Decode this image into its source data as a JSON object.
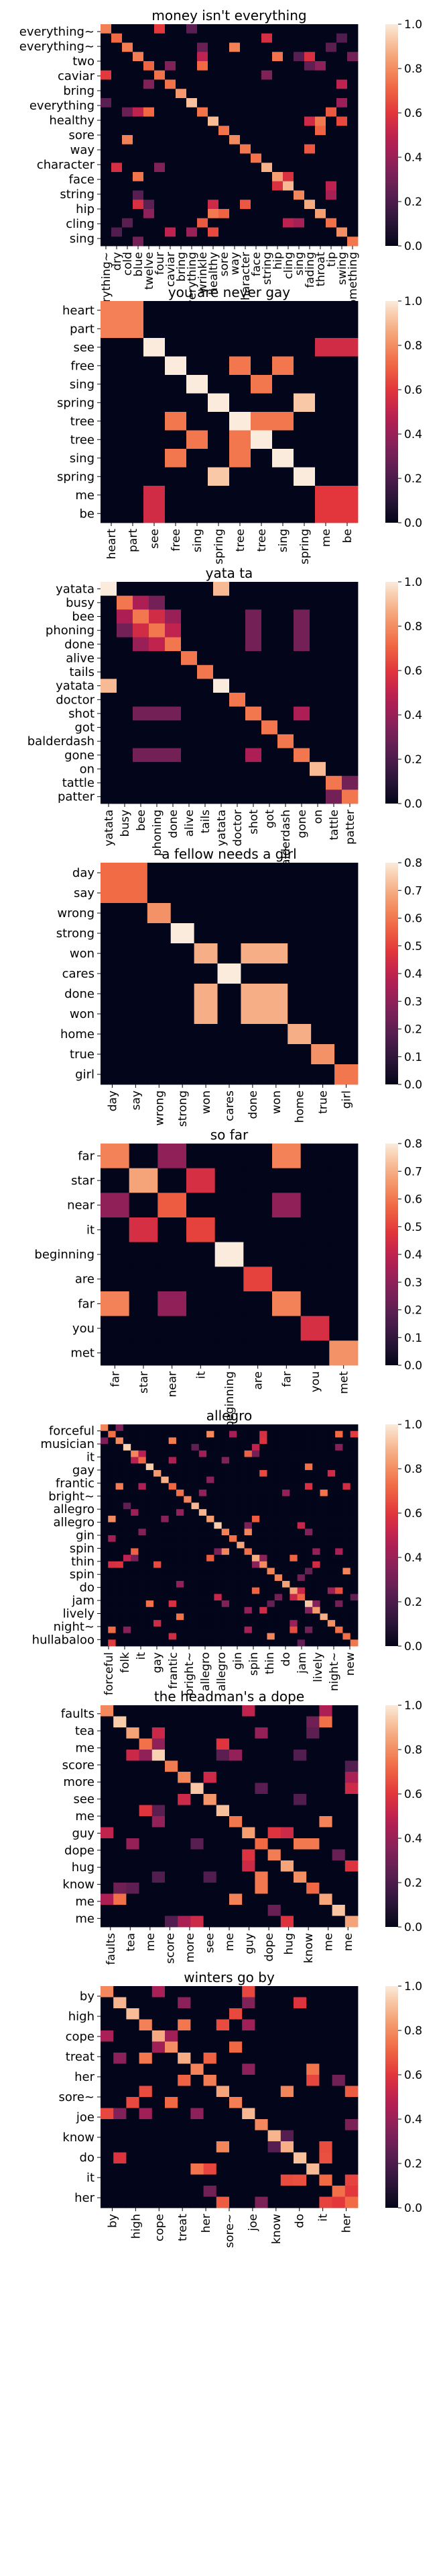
{
  "chart_data": [
    {
      "type": "heatmap",
      "title": "money isn't everything",
      "labels": [
        "everything~",
        "everything~",
        "two",
        "caviar",
        "bring",
        "everything",
        "healthy",
        "sore",
        "way",
        "character",
        "face",
        "string",
        "hip",
        "cling",
        "sing"
      ],
      "xlabels": [
        "everything~",
        "dry",
        "cold",
        "blue",
        "twelve",
        "four",
        "caviar",
        "bring",
        "everything",
        "wrinkle",
        "healthy",
        "sore",
        "way",
        "character",
        "face",
        "string",
        "hip",
        "cling",
        "sing",
        "fading",
        "throat",
        "tip",
        "swing",
        "something"
      ],
      "ylabels": [
        "everything~",
        "everything~",
        "two",
        "caviar",
        "bring",
        "everything",
        "healthy",
        "sore",
        "way",
        "character",
        "face",
        "string",
        "hip",
        "cling",
        "sing"
      ],
      "n": 24,
      "shown_ylabels_every": 1,
      "vmax": 1.0,
      "colorbar_ticks": [
        0.0,
        0.2,
        0.4,
        0.6,
        0.8,
        1.0
      ]
    },
    {
      "type": "heatmap",
      "title": "you are never gay",
      "xlabels": [
        "heart",
        "part",
        "see",
        "free",
        "sing",
        "spring",
        "tree",
        "tree",
        "sing",
        "spring",
        "me",
        "be"
      ],
      "ylabels": [
        "heart",
        "part",
        "see",
        "free",
        "sing",
        "spring",
        "tree",
        "tree",
        "sing",
        "spring",
        "me",
        "be"
      ],
      "vmax": 1.0,
      "colorbar_ticks": [
        0.0,
        0.2,
        0.4,
        0.6,
        0.8,
        1.0
      ],
      "cells": [
        [
          0.77,
          0.77,
          0,
          0,
          0,
          0,
          0,
          0,
          0,
          0,
          0,
          0
        ],
        [
          0.77,
          0.77,
          0,
          0,
          0,
          0,
          0,
          0,
          0,
          0,
          0,
          0
        ],
        [
          0,
          0,
          1.0,
          0,
          0,
          0,
          0,
          0,
          0,
          0,
          0.55,
          0.55
        ],
        [
          0,
          0,
          0,
          1.0,
          0,
          0,
          0.75,
          0,
          0.75,
          0,
          0,
          0
        ],
        [
          0,
          0,
          0,
          0,
          1.0,
          0,
          0,
          0.75,
          0,
          0,
          0,
          0
        ],
        [
          0,
          0,
          0,
          0,
          0,
          1.0,
          0,
          0,
          0,
          0.93,
          0,
          0
        ],
        [
          0,
          0,
          0,
          0.75,
          0,
          0,
          1.0,
          0.75,
          0.75,
          0,
          0,
          0
        ],
        [
          0,
          0,
          0,
          0,
          0.75,
          0,
          0.75,
          1.0,
          0,
          0,
          0,
          0
        ],
        [
          0,
          0,
          0,
          0.75,
          0,
          0,
          0.75,
          0,
          1.0,
          0,
          0,
          0
        ],
        [
          0,
          0,
          0,
          0,
          0,
          0.93,
          0,
          0,
          0,
          1.0,
          0,
          0
        ],
        [
          0,
          0,
          0.55,
          0,
          0,
          0,
          0,
          0,
          0,
          0,
          0.6,
          0.6
        ],
        [
          0,
          0,
          0.55,
          0,
          0,
          0,
          0,
          0,
          0,
          0,
          0.6,
          0.6
        ]
      ]
    },
    {
      "type": "heatmap",
      "title": "yata ta",
      "xlabels": [
        "yatata",
        "busy",
        "bee",
        "phoning",
        "done",
        "alive",
        "tails",
        "yatata",
        "doctor",
        "shot",
        "got",
        "balderdash",
        "gone",
        "on",
        "tattle",
        "patter"
      ],
      "ylabels": [
        "yatata",
        "busy",
        "bee",
        "phoning",
        "done",
        "alive",
        "tails",
        "yatata",
        "doctor",
        "shot",
        "got",
        "balderdash",
        "gone",
        "on",
        "tattle",
        "patter"
      ],
      "vmax": 1.0,
      "colorbar_ticks": [
        0.0,
        0.2,
        0.4,
        0.6,
        0.8,
        1.0
      ],
      "cells": [
        [
          1.0,
          0,
          0,
          0,
          0,
          0,
          0,
          0.9,
          0,
          0,
          0,
          0,
          0,
          0,
          0,
          0
        ],
        [
          0,
          0.75,
          0.45,
          0.3,
          0,
          0,
          0,
          0,
          0,
          0,
          0,
          0,
          0,
          0,
          0,
          0
        ],
        [
          0,
          0.45,
          0.75,
          0.55,
          0.4,
          0,
          0,
          0,
          0,
          0.3,
          0,
          0,
          0.3,
          0,
          0,
          0
        ],
        [
          0,
          0.3,
          0.55,
          0.75,
          0.5,
          0,
          0,
          0,
          0,
          0.3,
          0,
          0,
          0.3,
          0,
          0,
          0
        ],
        [
          0,
          0,
          0.4,
          0.5,
          0.75,
          0,
          0,
          0,
          0,
          0.3,
          0,
          0,
          0.3,
          0,
          0,
          0
        ],
        [
          0,
          0,
          0,
          0,
          0,
          0.75,
          0,
          0,
          0,
          0,
          0,
          0,
          0,
          0,
          0,
          0
        ],
        [
          0,
          0,
          0,
          0,
          0,
          0,
          0.75,
          0,
          0,
          0,
          0,
          0,
          0,
          0,
          0,
          0
        ],
        [
          0.9,
          0,
          0,
          0,
          0,
          0,
          0,
          1.0,
          0,
          0,
          0,
          0,
          0,
          0,
          0,
          0
        ],
        [
          0,
          0,
          0,
          0,
          0,
          0,
          0,
          0,
          0.75,
          0,
          0,
          0,
          0,
          0,
          0,
          0
        ],
        [
          0,
          0,
          0.3,
          0.3,
          0.3,
          0,
          0,
          0,
          0,
          0.75,
          0,
          0,
          0.45,
          0,
          0,
          0
        ],
        [
          0,
          0,
          0,
          0,
          0,
          0,
          0,
          0,
          0,
          0,
          0.75,
          0,
          0,
          0,
          0,
          0
        ],
        [
          0,
          0,
          0,
          0,
          0,
          0,
          0,
          0,
          0,
          0,
          0,
          0.75,
          0,
          0,
          0,
          0
        ],
        [
          0,
          0,
          0.3,
          0.3,
          0.3,
          0,
          0,
          0,
          0,
          0.45,
          0,
          0,
          0.75,
          0,
          0,
          0
        ],
        [
          0,
          0,
          0,
          0,
          0,
          0,
          0,
          0,
          0,
          0,
          0,
          0,
          0,
          0.9,
          0,
          0
        ],
        [
          0,
          0,
          0,
          0,
          0,
          0,
          0,
          0,
          0,
          0,
          0,
          0,
          0,
          0,
          0.75,
          0.3
        ],
        [
          0,
          0,
          0,
          0,
          0,
          0,
          0,
          0,
          0,
          0,
          0,
          0,
          0,
          0,
          0.3,
          0.75
        ]
      ]
    },
    {
      "type": "heatmap",
      "title": "a fellow needs a girl",
      "xlabels": [
        "day",
        "say",
        "wrong",
        "strong",
        "won",
        "cares",
        "done",
        "won",
        "home",
        "true",
        "girl"
      ],
      "ylabels": [
        "day",
        "say",
        "wrong",
        "strong",
        "won",
        "cares",
        "done",
        "won",
        "home",
        "true",
        "girl"
      ],
      "vmax": 0.8,
      "colorbar_ticks": [
        0.0,
        0.1,
        0.2,
        0.3,
        0.4,
        0.5,
        0.6,
        0.7,
        0.8
      ],
      "cells": [
        [
          0.58,
          0.58,
          0,
          0,
          0,
          0,
          0,
          0,
          0,
          0,
          0
        ],
        [
          0.58,
          0.58,
          0,
          0,
          0,
          0,
          0,
          0,
          0,
          0,
          0
        ],
        [
          0,
          0,
          0.65,
          0,
          0,
          0,
          0,
          0,
          0,
          0,
          0
        ],
        [
          0,
          0,
          0,
          0.8,
          0,
          0,
          0,
          0,
          0,
          0,
          0
        ],
        [
          0,
          0,
          0,
          0,
          0.7,
          0,
          0.7,
          0.7,
          0,
          0,
          0
        ],
        [
          0,
          0,
          0,
          0,
          0,
          0.8,
          0,
          0,
          0,
          0,
          0
        ],
        [
          0,
          0,
          0,
          0,
          0.7,
          0,
          0.7,
          0.7,
          0,
          0,
          0
        ],
        [
          0,
          0,
          0,
          0,
          0.7,
          0,
          0.7,
          0.7,
          0,
          0,
          0
        ],
        [
          0,
          0,
          0,
          0,
          0,
          0,
          0,
          0,
          0.7,
          0,
          0
        ],
        [
          0,
          0,
          0,
          0,
          0,
          0,
          0,
          0,
          0,
          0.65,
          0
        ],
        [
          0,
          0,
          0,
          0,
          0,
          0,
          0,
          0,
          0,
          0,
          0.6
        ]
      ]
    },
    {
      "type": "heatmap",
      "title": "so far",
      "xlabels": [
        "far",
        "star",
        "near",
        "it",
        "beginning",
        "are",
        "far",
        "you",
        "met"
      ],
      "ylabels": [
        "far",
        "star",
        "near",
        "it",
        "beginning",
        "are",
        "far",
        "you",
        "met"
      ],
      "vmax": 0.8,
      "colorbar_ticks": [
        0.0,
        0.1,
        0.2,
        0.3,
        0.4,
        0.5,
        0.6,
        0.7,
        0.8
      ],
      "cells": [
        [
          0.62,
          0,
          0.3,
          0,
          0,
          0,
          0.62,
          0,
          0
        ],
        [
          0,
          0.68,
          0,
          0.45,
          0,
          0,
          0,
          0,
          0
        ],
        [
          0.3,
          0,
          0.55,
          0,
          0,
          0,
          0.3,
          0,
          0
        ],
        [
          0,
          0.45,
          0,
          0.5,
          0,
          0,
          0,
          0,
          0
        ],
        [
          0,
          0,
          0,
          0,
          0.8,
          0,
          0,
          0,
          0
        ],
        [
          0,
          0,
          0,
          0,
          0,
          0.5,
          0,
          0,
          0
        ],
        [
          0.62,
          0,
          0.3,
          0,
          0,
          0,
          0.62,
          0,
          0
        ],
        [
          0,
          0,
          0,
          0,
          0,
          0,
          0,
          0.45,
          0
        ],
        [
          0,
          0,
          0,
          0,
          0,
          0,
          0,
          0,
          0.65
        ]
      ]
    },
    {
      "type": "heatmap",
      "title": "allegro",
      "xlabels": [
        "forceful",
        "folk",
        "it",
        "gay",
        "frantic",
        "bright~",
        "allegro",
        "allegro",
        "gin",
        "spin",
        "thin",
        "do",
        "jam",
        "lively",
        "night~",
        "new"
      ],
      "ylabels": [
        "forceful",
        "musician",
        "it",
        "gay",
        "frantic",
        "bright~",
        "allegro",
        "allegro",
        "gin",
        "spin",
        "thin",
        "spin",
        "do",
        "jam",
        "lively",
        "night~",
        "hullabaloo"
      ],
      "n": 34,
      "vmax": 1.0,
      "colorbar_ticks": [
        0.0,
        0.2,
        0.4,
        0.6,
        0.8,
        1.0
      ]
    },
    {
      "type": "heatmap",
      "title": "the headman's a dope",
      "xlabels": [
        "faults",
        "tea",
        "me",
        "score",
        "more",
        "see",
        "me",
        "guy",
        "dope",
        "hug",
        "know",
        "me",
        "me"
      ],
      "ylabels": [
        "faults",
        "tea",
        "me",
        "score",
        "more",
        "see",
        "me",
        "guy",
        "dope",
        "hug",
        "know",
        "me",
        "me"
      ],
      "n": 20,
      "vmax": 1.0,
      "colorbar_ticks": [
        0.0,
        0.2,
        0.4,
        0.6,
        0.8,
        1.0
      ]
    },
    {
      "type": "heatmap",
      "title": "winters go by",
      "xlabels": [
        "by",
        "high",
        "cope",
        "treat",
        "her",
        "sore~",
        "joe",
        "know",
        "do",
        "it",
        "her"
      ],
      "ylabels": [
        "by",
        "high",
        "cope",
        "treat",
        "her",
        "sore~",
        "joe",
        "know",
        "do",
        "it",
        "her"
      ],
      "n": 20,
      "vmax": 1.0,
      "colorbar_ticks": [
        0.0,
        0.2,
        0.4,
        0.6,
        0.8,
        1.0
      ]
    }
  ]
}
